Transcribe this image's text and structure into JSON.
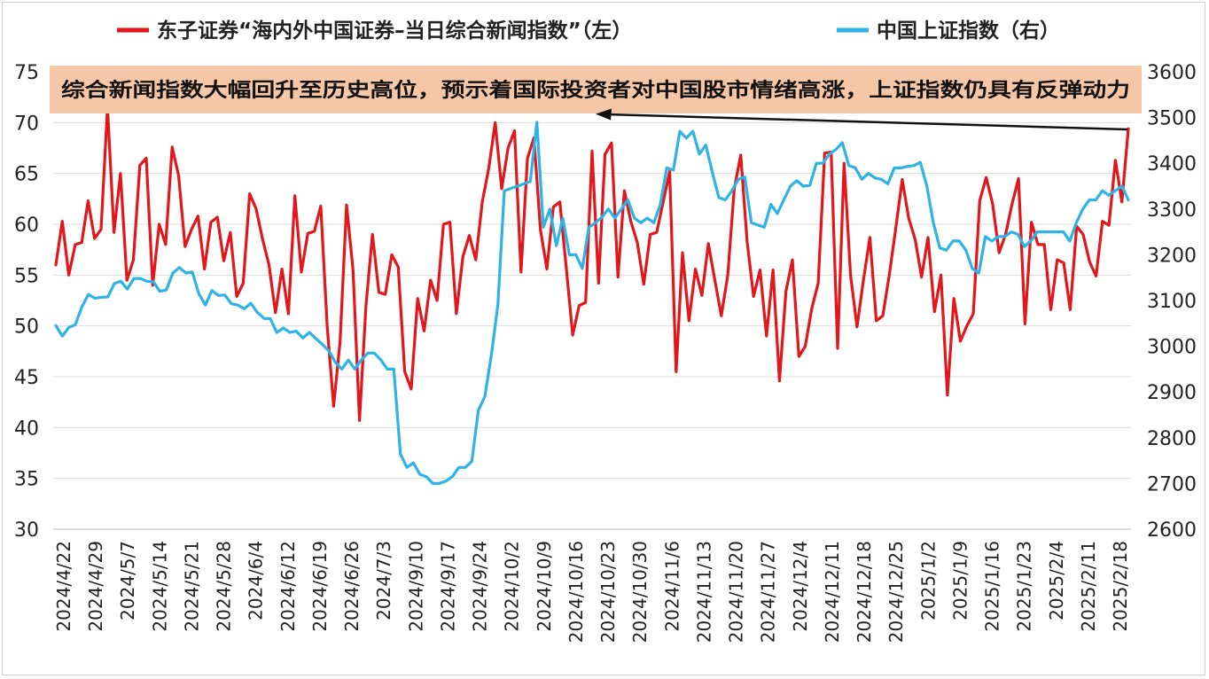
{
  "chart_data": {
    "type": "line",
    "legend": {
      "placement": "top",
      "items": [
        {
          "label": "东子证券“海内外中国证券–当日综合新闻指数”（左）",
          "color": "#e3161b"
        },
        {
          "label": "中国上证指数（右）",
          "color": "#2eb3e6"
        }
      ]
    },
    "annotation": "综合新闻指数大幅回升至历史高位，预示着国际投资者对中国股市情绪高涨，上证指数仍具有反弹动力",
    "annotation_bg": "#f6c7a6",
    "grid": true,
    "y_left": {
      "min": 30,
      "max": 75,
      "ticks": [
        "30",
        "35",
        "40",
        "45",
        "50",
        "55",
        "60",
        "65",
        "70",
        "75"
      ]
    },
    "y_right": {
      "min": 2600,
      "max": 3600,
      "ticks": [
        "2600",
        "2700",
        "2800",
        "2900",
        "3000",
        "3100",
        "3200",
        "3300",
        "3400",
        "3500",
        "3600"
      ]
    },
    "x_ticks": [
      "2024/4/22",
      "2024/4/29",
      "2024/5/7",
      "2024/5/14",
      "2024/5/21",
      "2024/5/28",
      "2024/6/4",
      "2024/6/12",
      "2024/6/19",
      "2024/6/26",
      "2024/7/3",
      "2024/9/10",
      "2024/9/17",
      "2024/9/24",
      "2024/10/2",
      "2024/10/9",
      "2024/10/16",
      "2024/10/23",
      "2024/10/30",
      "2024/11/6",
      "2024/11/13",
      "2024/11/20",
      "2024/11/27",
      "2024/12/4",
      "2024/12/11",
      "2024/12/18",
      "2024/12/25",
      "2025/1/2",
      "2025/1/9",
      "2025/1/16",
      "2025/1/23",
      "2025/2/4",
      "2025/2/11",
      "2025/2/18"
    ],
    "series": [
      {
        "name": "东子证券“海内外中国证券–当日综合新闻指数”（左）",
        "axis": "left",
        "color": "#e3161b",
        "values": [
          56,
          60.3,
          55,
          58,
          58.2,
          62.3,
          58.6,
          59.5,
          71.5,
          59.2,
          65,
          54.5,
          56.5,
          65.8,
          66.5,
          54,
          60,
          58,
          67.6,
          64.8,
          57.8,
          59.5,
          60.8,
          55.6,
          60.2,
          60.7,
          56.4,
          59.2,
          52.9,
          54.2,
          63,
          61.5,
          58.5,
          56,
          51.3,
          55.6,
          51.2,
          62.8,
          55.3,
          59.1,
          59.3,
          61.8,
          50,
          42.1,
          48.5,
          61.9,
          55.5,
          40.7,
          52,
          59,
          53.3,
          53.1,
          57,
          55.8,
          45.5,
          43.8,
          52.7,
          49.5,
          54.5,
          52.5,
          60,
          60.2,
          51.2,
          56.8,
          58.9,
          56.5,
          62.2,
          65.5,
          70,
          63.5,
          67.5,
          69.2,
          55.3,
          66.5,
          68.5,
          59.5,
          55.6,
          61.7,
          62.2,
          55.8,
          49.1,
          52,
          52.3,
          67.2,
          54.2,
          66.9,
          68,
          54.8,
          63.3,
          60.3,
          58.2,
          54.1,
          59,
          59.2,
          62.2,
          65.2,
          45.5,
          57.2,
          50.5,
          55.6,
          53,
          58.1,
          54.5,
          51,
          55,
          63.5,
          66.8,
          58.3,
          52.9,
          55.5,
          49,
          55.5,
          44.6,
          53.4,
          56.5,
          47,
          48,
          51.7,
          54.2,
          67,
          67.1,
          47.8,
          66,
          55,
          49.9,
          54.5,
          58.7,
          50.5,
          51,
          55,
          59.6,
          64.4,
          60.6,
          58.5,
          54.8,
          58.7,
          51.4,
          55,
          43.2,
          52.7,
          48.5,
          50,
          51.2,
          62.3,
          64.6,
          62,
          57.2,
          59,
          62,
          64.5,
          50.2,
          60.2,
          58,
          58,
          51.6,
          56.5,
          56.2,
          51.6,
          59.8,
          59,
          56.3,
          54.9,
          60.3,
          59.9,
          66.3,
          62.2,
          69.4
        ]
      },
      {
        "name": "中国上证指数（右）",
        "axis": "right",
        "color": "#2eb3e6",
        "values": [
          3045,
          3022,
          3041,
          3047,
          3086,
          3113,
          3105,
          3107,
          3108,
          3137,
          3142,
          3125,
          3148,
          3148,
          3142,
          3141,
          3120,
          3123,
          3160,
          3172,
          3160,
          3162,
          3115,
          3090,
          3122,
          3111,
          3112,
          3093,
          3090,
          3082,
          3094,
          3074,
          3061,
          3060,
          3030,
          3040,
          3030,
          3033,
          3018,
          3030,
          3017,
          3004,
          2990,
          2965,
          2950,
          2970,
          2950,
          2970,
          2985,
          2985,
          2970,
          2950,
          2950,
          2765,
          2735,
          2745,
          2720,
          2715,
          2700,
          2700,
          2705,
          2715,
          2735,
          2735,
          2748,
          2860,
          2890,
          2980,
          3090,
          3340,
          3345,
          3350,
          3355,
          3360,
          3490,
          3260,
          3300,
          3220,
          3280,
          3200,
          3200,
          3170,
          3260,
          3270,
          3282,
          3300,
          3280,
          3300,
          3320,
          3280,
          3270,
          3280,
          3270,
          3310,
          3390,
          3385,
          3470,
          3455,
          3470,
          3420,
          3440,
          3380,
          3325,
          3320,
          3340,
          3365,
          3370,
          3270,
          3265,
          3260,
          3310,
          3290,
          3320,
          3350,
          3362,
          3350,
          3352,
          3400,
          3400,
          3420,
          3430,
          3445,
          3395,
          3390,
          3365,
          3378,
          3368,
          3365,
          3355,
          3390,
          3390,
          3393,
          3395,
          3402,
          3350,
          3270,
          3215,
          3210,
          3230,
          3230,
          3210,
          3170,
          3160,
          3240,
          3230,
          3240,
          3240,
          3250,
          3245,
          3218,
          3230,
          3250,
          3250,
          3250,
          3250,
          3250,
          3230,
          3270,
          3300,
          3320,
          3320,
          3340,
          3330,
          3340,
          3350,
          3320
        ]
      }
    ]
  }
}
